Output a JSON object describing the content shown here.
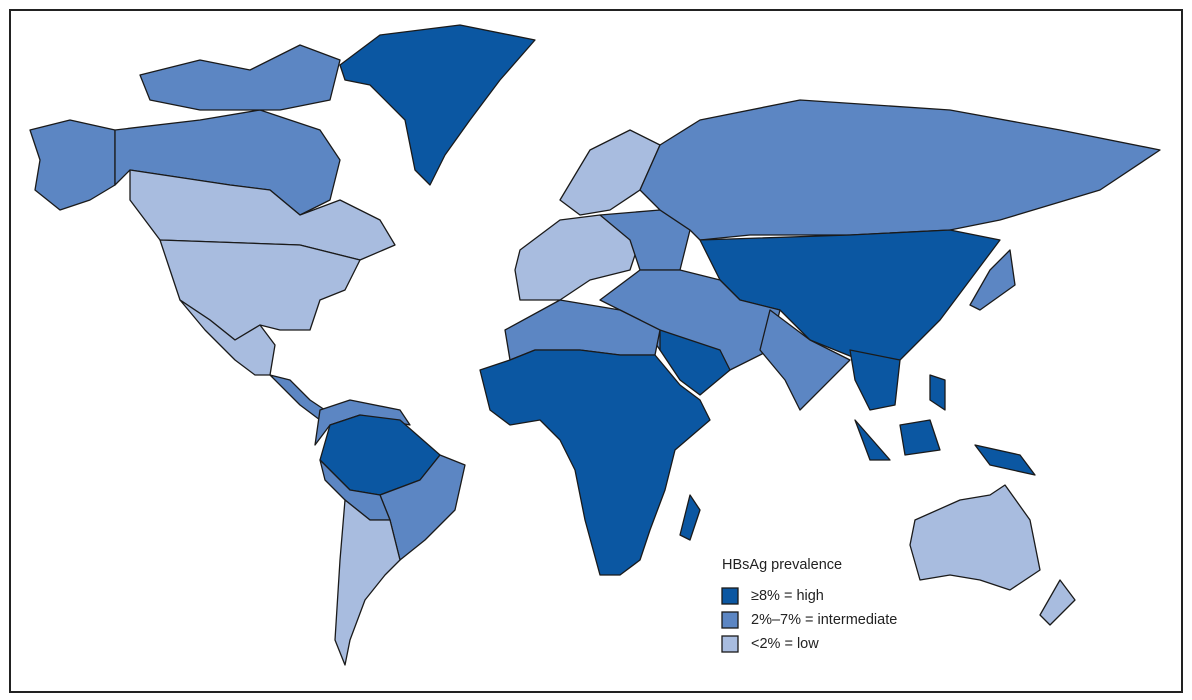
{
  "legend": {
    "title": "HBsAg prevalence",
    "items": [
      {
        "label": "≥8% = high",
        "color": "#0b57a2"
      },
      {
        "label": "2%–7% = intermediate",
        "color": "#5c86c3"
      },
      {
        "label": "<2% = low",
        "color": "#a8bcdf"
      }
    ]
  }
}
